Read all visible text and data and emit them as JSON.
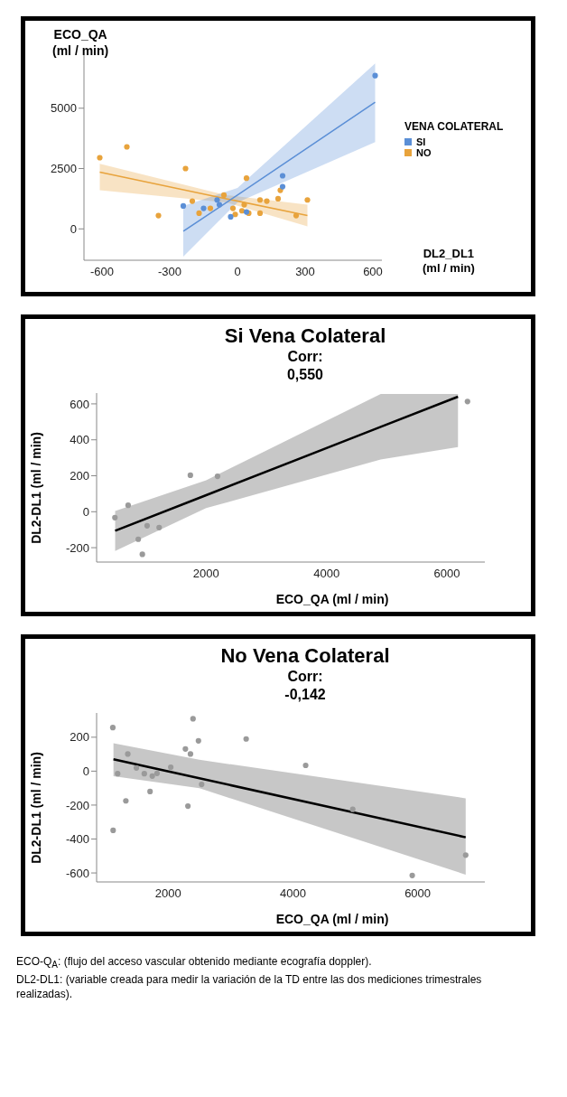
{
  "chart_data": [
    {
      "type": "scatter",
      "ylabel": "ECO_QA\n(ml / min)",
      "xlabel": "DL2_DL1\n(ml / min)",
      "legend_title": "VENA COLATERAL",
      "legend": "right",
      "marker": "circle",
      "xlim": [
        -680,
        640
      ],
      "xticks": [
        -600,
        -300,
        0,
        300,
        600
      ],
      "ylim": [
        -1300,
        7200
      ],
      "yticks": [
        0,
        2500,
        5000
      ],
      "series": [
        {
          "name": "SI",
          "color": "#5b8fd6",
          "x": [
            -30,
            40,
            -150,
            -240,
            -80,
            -90,
            200,
            200,
            610
          ],
          "values": [
            500,
            700,
            850,
            950,
            1000,
            1200,
            1750,
            2200,
            6350
          ]
        },
        {
          "name": "NO",
          "color": "#e8a33c",
          "x": [
            -610,
            -490,
            -350,
            -230,
            -200,
            -170,
            -120,
            -60,
            -20,
            -10,
            20,
            50,
            30,
            100,
            100,
            130,
            180,
            190,
            260,
            310,
            40
          ],
          "values": [
            2950,
            3400,
            550,
            2500,
            1150,
            650,
            850,
            1400,
            850,
            600,
            750,
            650,
            1000,
            650,
            1200,
            1150,
            1250,
            1600,
            550,
            1200,
            2100
          ]
        },
        {
          "type": "line",
          "marker": "none",
          "color": "#5b8fd6",
          "x": [
            -240,
            0,
            610
          ],
          "values": [
            -100,
            1400,
            5250
          ],
          "lower": [
            -1150,
            1100,
            3600
          ],
          "upper": [
            950,
            1700,
            6850
          ]
        },
        {
          "type": "line",
          "marker": "none",
          "color": "#e8a33c",
          "x": [
            -610,
            -50,
            310
          ],
          "values": [
            2350,
            1250,
            550
          ],
          "lower": [
            1600,
            1100,
            100
          ],
          "upper": [
            2700,
            1400,
            1000
          ]
        }
      ]
    },
    {
      "type": "scatter",
      "title": "Si Vena Colateral",
      "subtitle": "Corr:\n0,550",
      "ylabel": "DL2-DL1  (ml / min)",
      "xlabel": "ECO_QA  (ml / min)",
      "marker": "circle",
      "xlim": [
        180,
        6630
      ],
      "xticks": [
        2000,
        4000,
        6000
      ],
      "ylim": [
        -280,
        660
      ],
      "yticks": [
        -200,
        0,
        200,
        400,
        600
      ],
      "series": [
        {
          "color": "#9a9a9a",
          "x": [
            484,
            704,
            872,
            940,
            1019,
            1219,
            1738,
            2189,
            6342
          ],
          "values": [
            -33,
            36,
            -153,
            -237,
            -78,
            -88,
            203,
            197,
            613
          ]
        },
        {
          "type": "line",
          "marker": "none",
          "color": "#000000",
          "x": [
            488,
            2000,
            4900,
            6184
          ],
          "values": [
            -106,
            92,
            472,
            640
          ],
          "lower": [
            -218,
            20,
            290,
            360
          ],
          "upper": [
            4,
            175,
            655,
            655
          ]
        }
      ]
    },
    {
      "type": "scatter",
      "title": "No Vena Colateral",
      "subtitle": "Corr:\n-0,142",
      "ylabel": "DL2-DL1  (ml / min)",
      "xlabel": "ECO_QA  (ml / min)",
      "marker": "circle",
      "xlim": [
        852,
        7077
      ],
      "xticks": [
        2000,
        4000,
        6000
      ],
      "ylim": [
        -653,
        343
      ],
      "yticks": [
        -600,
        -400,
        -200,
        0,
        200
      ],
      "series": [
        {
          "color": "#9a9a9a",
          "x": [
            1112,
            1189,
            1117,
            1352,
            1321,
            1490,
            1617,
            1709,
            1745,
            1821,
            2041,
            2276,
            2357,
            2398,
            2485,
            2316,
            2536,
            3250,
            4204,
            4959,
            5913,
            6770
          ],
          "values": [
            257,
            -15,
            -349,
            101,
            -175,
            19,
            -15,
            -120,
            -29,
            -13,
            23,
            131,
            101,
            309,
            179,
            -206,
            -78,
            190,
            34,
            -225,
            -615,
            -495
          ]
        },
        {
          "type": "line",
          "marker": "none",
          "color": "#000000",
          "x": [
            1122,
            2500,
            6770
          ],
          "values": [
            70,
            -42,
            -390
          ],
          "lower": [
            -30,
            -101,
            -610
          ],
          "upper": [
            165,
            67,
            -160
          ]
        }
      ],
      "annotations": [
        "ECO-Q$_{A}$: (flujo del acceso vascular obtenido mediante ecografía doppler).",
        "DL2-DL1: (variable creada para medir la variación de la TD entre las dos mediciones trimestrales realizadas)."
      ]
    }
  ]
}
